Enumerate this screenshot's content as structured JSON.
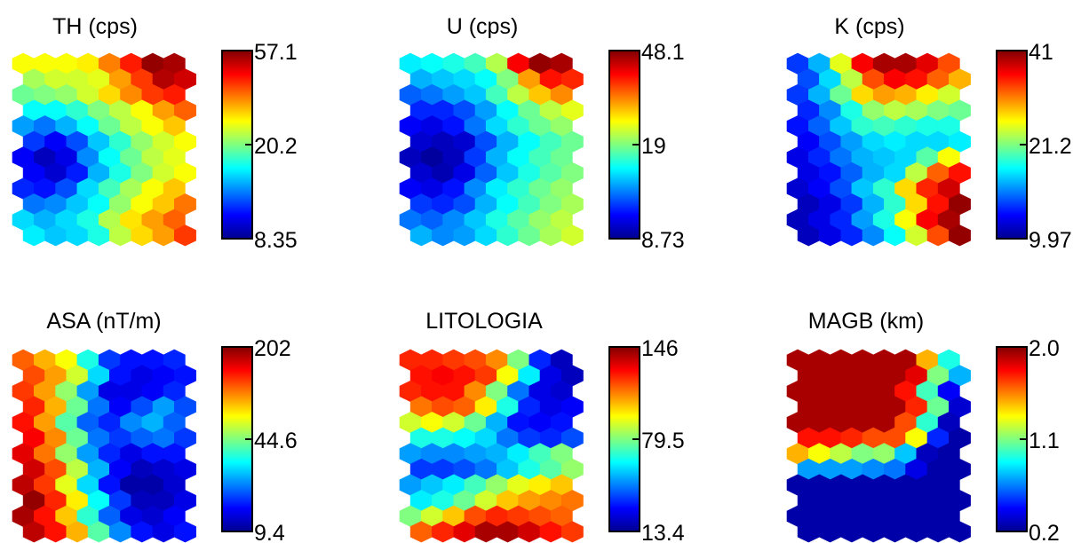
{
  "chart_data": [
    {
      "type": "heatmap",
      "title": "TH (cps)",
      "colorbar": {
        "min": 8.35,
        "mid": 20.2,
        "max": 57.1,
        "labels": [
          "57.1",
          "20.2",
          "8.35"
        ]
      },
      "grid": {
        "rows": 12,
        "cols": 8,
        "layout": "hexagonal"
      },
      "colormap": "jet",
      "values_normalized": [
        [
          0.62,
          0.62,
          0.62,
          0.64,
          0.75,
          0.85,
          0.98,
          0.96
        ],
        [
          0.54,
          0.58,
          0.58,
          0.6,
          0.72,
          0.82,
          0.95,
          0.92
        ],
        [
          0.48,
          0.5,
          0.52,
          0.58,
          0.66,
          0.74,
          0.82,
          0.85
        ],
        [
          0.38,
          0.38,
          0.42,
          0.5,
          0.56,
          0.62,
          0.72,
          0.78
        ],
        [
          0.28,
          0.24,
          0.3,
          0.38,
          0.48,
          0.56,
          0.62,
          0.68
        ],
        [
          0.18,
          0.12,
          0.2,
          0.32,
          0.42,
          0.52,
          0.58,
          0.62
        ],
        [
          0.12,
          0.06,
          0.1,
          0.26,
          0.38,
          0.48,
          0.56,
          0.6
        ],
        [
          0.12,
          0.08,
          0.15,
          0.3,
          0.4,
          0.5,
          0.58,
          0.62
        ],
        [
          0.16,
          0.14,
          0.2,
          0.34,
          0.44,
          0.54,
          0.62,
          0.68
        ],
        [
          0.24,
          0.26,
          0.32,
          0.38,
          0.52,
          0.62,
          0.68,
          0.76
        ],
        [
          0.34,
          0.3,
          0.34,
          0.4,
          0.55,
          0.65,
          0.72,
          0.78
        ],
        [
          0.36,
          0.32,
          0.34,
          0.4,
          0.56,
          0.66,
          0.72,
          0.82
        ]
      ]
    },
    {
      "type": "heatmap",
      "title": "U (cps)",
      "colorbar": {
        "min": 8.73,
        "mid": 19,
        "max": 48.1,
        "labels": [
          "48.1",
          "19",
          "8.73"
        ]
      },
      "grid": {
        "rows": 12,
        "cols": 8,
        "layout": "hexagonal"
      },
      "colormap": "jet",
      "values_normalized": [
        [
          0.36,
          0.38,
          0.4,
          0.44,
          0.55,
          0.88,
          0.98,
          0.96
        ],
        [
          0.3,
          0.32,
          0.34,
          0.38,
          0.5,
          0.72,
          0.86,
          0.84
        ],
        [
          0.22,
          0.24,
          0.28,
          0.32,
          0.44,
          0.56,
          0.68,
          0.74
        ],
        [
          0.16,
          0.16,
          0.2,
          0.28,
          0.38,
          0.48,
          0.56,
          0.6
        ],
        [
          0.12,
          0.1,
          0.14,
          0.24,
          0.34,
          0.42,
          0.48,
          0.52
        ],
        [
          0.08,
          0.06,
          0.08,
          0.2,
          0.3,
          0.38,
          0.44,
          0.48
        ],
        [
          0.06,
          0.03,
          0.06,
          0.18,
          0.3,
          0.38,
          0.44,
          0.48
        ],
        [
          0.08,
          0.05,
          0.1,
          0.22,
          0.32,
          0.4,
          0.46,
          0.5
        ],
        [
          0.12,
          0.1,
          0.14,
          0.26,
          0.36,
          0.42,
          0.48,
          0.52
        ],
        [
          0.18,
          0.16,
          0.2,
          0.3,
          0.38,
          0.44,
          0.5,
          0.54
        ],
        [
          0.24,
          0.22,
          0.26,
          0.32,
          0.4,
          0.46,
          0.52,
          0.56
        ],
        [
          0.3,
          0.26,
          0.28,
          0.34,
          0.42,
          0.48,
          0.54,
          0.58
        ]
      ]
    },
    {
      "type": "heatmap",
      "title": "K (cps)",
      "colorbar": {
        "min": 9.97,
        "mid": 21.2,
        "max": 41,
        "labels": [
          "41",
          "21.2",
          "9.97"
        ]
      },
      "grid": {
        "rows": 12,
        "cols": 8,
        "layout": "hexagonal"
      },
      "colormap": "jet",
      "values_normalized": [
        [
          0.18,
          0.3,
          0.6,
          0.88,
          0.96,
          0.96,
          0.9,
          0.8
        ],
        [
          0.2,
          0.34,
          0.56,
          0.8,
          0.88,
          0.86,
          0.78,
          0.7
        ],
        [
          0.18,
          0.3,
          0.48,
          0.66,
          0.72,
          0.7,
          0.64,
          0.58
        ],
        [
          0.16,
          0.26,
          0.4,
          0.52,
          0.56,
          0.54,
          0.5,
          0.48
        ],
        [
          0.14,
          0.22,
          0.32,
          0.42,
          0.44,
          0.42,
          0.4,
          0.4
        ],
        [
          0.12,
          0.2,
          0.28,
          0.34,
          0.36,
          0.34,
          0.34,
          0.36
        ],
        [
          0.1,
          0.16,
          0.24,
          0.3,
          0.32,
          0.34,
          0.46,
          0.62
        ],
        [
          0.1,
          0.14,
          0.22,
          0.3,
          0.34,
          0.56,
          0.78,
          0.86
        ],
        [
          0.08,
          0.12,
          0.2,
          0.32,
          0.42,
          0.66,
          0.84,
          0.92
        ],
        [
          0.06,
          0.1,
          0.18,
          0.3,
          0.42,
          0.66,
          0.86,
          0.98
        ],
        [
          0.06,
          0.1,
          0.16,
          0.28,
          0.4,
          0.62,
          0.88,
          0.96
        ],
        [
          0.06,
          0.1,
          0.16,
          0.26,
          0.38,
          0.58,
          0.8,
          0.98
        ]
      ]
    },
    {
      "type": "heatmap",
      "title": "ASA (nT/m)",
      "colorbar": {
        "min": 9.4,
        "mid": 44.6,
        "max": 202,
        "labels": [
          "202",
          "44.6",
          "9.4"
        ]
      },
      "grid": {
        "rows": 12,
        "cols": 8,
        "layout": "hexagonal"
      },
      "colormap": "jet",
      "values_normalized": [
        [
          0.78,
          0.7,
          0.62,
          0.4,
          0.18,
          0.14,
          0.14,
          0.16
        ],
        [
          0.8,
          0.72,
          0.58,
          0.34,
          0.14,
          0.1,
          0.12,
          0.14
        ],
        [
          0.82,
          0.72,
          0.52,
          0.28,
          0.1,
          0.1,
          0.12,
          0.16
        ],
        [
          0.84,
          0.7,
          0.48,
          0.24,
          0.12,
          0.2,
          0.28,
          0.2
        ],
        [
          0.86,
          0.72,
          0.46,
          0.22,
          0.16,
          0.26,
          0.3,
          0.22
        ],
        [
          0.88,
          0.74,
          0.48,
          0.24,
          0.18,
          0.22,
          0.24,
          0.18
        ],
        [
          0.9,
          0.76,
          0.52,
          0.28,
          0.16,
          0.1,
          0.14,
          0.14
        ],
        [
          0.92,
          0.8,
          0.56,
          0.3,
          0.12,
          0.06,
          0.08,
          0.1
        ],
        [
          0.94,
          0.82,
          0.6,
          0.34,
          0.14,
          0.04,
          0.04,
          0.08
        ],
        [
          0.98,
          0.84,
          0.64,
          0.38,
          0.18,
          0.06,
          0.06,
          0.1
        ],
        [
          0.96,
          0.86,
          0.68,
          0.42,
          0.22,
          0.1,
          0.08,
          0.12
        ],
        [
          0.94,
          0.86,
          0.7,
          0.46,
          0.26,
          0.14,
          0.1,
          0.14
        ]
      ]
    },
    {
      "type": "heatmap",
      "title": "LITOLOGIA",
      "colorbar": {
        "min": 13.4,
        "mid": 79.5,
        "max": 146,
        "labels": [
          "146",
          "79.5",
          "13.4"
        ]
      },
      "grid": {
        "rows": 12,
        "cols": 8,
        "layout": "hexagonal"
      },
      "colormap": "jet",
      "values_normalized": [
        [
          0.84,
          0.84,
          0.82,
          0.8,
          0.74,
          0.5,
          0.16,
          0.06
        ],
        [
          0.86,
          0.88,
          0.86,
          0.82,
          0.62,
          0.36,
          0.1,
          0.06
        ],
        [
          0.84,
          0.86,
          0.86,
          0.74,
          0.5,
          0.24,
          0.1,
          0.08
        ],
        [
          0.76,
          0.8,
          0.78,
          0.64,
          0.4,
          0.16,
          0.1,
          0.12
        ],
        [
          0.58,
          0.62,
          0.58,
          0.48,
          0.3,
          0.14,
          0.12,
          0.14
        ],
        [
          0.4,
          0.4,
          0.38,
          0.34,
          0.24,
          0.18,
          0.16,
          0.2
        ],
        [
          0.28,
          0.26,
          0.26,
          0.28,
          0.3,
          0.36,
          0.44,
          0.5
        ],
        [
          0.18,
          0.18,
          0.2,
          0.24,
          0.32,
          0.4,
          0.46,
          0.52
        ],
        [
          0.28,
          0.32,
          0.36,
          0.44,
          0.52,
          0.6,
          0.64,
          0.68
        ],
        [
          0.36,
          0.4,
          0.48,
          0.58,
          0.68,
          0.72,
          0.74,
          0.76
        ],
        [
          0.5,
          0.58,
          0.68,
          0.8,
          0.84,
          0.82,
          0.8,
          0.78
        ],
        [
          0.78,
          0.84,
          0.9,
          0.96,
          0.96,
          0.92,
          0.86,
          0.82
        ]
      ]
    },
    {
      "type": "heatmap",
      "title": "MAGB (km)",
      "colorbar": {
        "min": 0.2,
        "mid": 1.1,
        "max": 2.0,
        "labels": [
          "2.0",
          "1.1",
          "0.2"
        ]
      },
      "grid": {
        "rows": 12,
        "cols": 8,
        "layout": "hexagonal"
      },
      "colormap": "jet",
      "values_normalized": [
        [
          0.96,
          0.96,
          0.96,
          0.96,
          0.96,
          0.96,
          0.7,
          0.4
        ],
        [
          0.96,
          0.96,
          0.96,
          0.96,
          0.96,
          0.9,
          0.5,
          0.3
        ],
        [
          0.96,
          0.96,
          0.96,
          0.96,
          0.96,
          0.86,
          0.44,
          0.12
        ],
        [
          0.96,
          0.96,
          0.96,
          0.96,
          0.96,
          0.84,
          0.48,
          0.08
        ],
        [
          0.96,
          0.96,
          0.96,
          0.96,
          0.96,
          0.8,
          0.42,
          0.06
        ],
        [
          0.86,
          0.86,
          0.84,
          0.8,
          0.8,
          0.62,
          0.16,
          0.04
        ],
        [
          0.7,
          0.62,
          0.56,
          0.5,
          0.52,
          0.32,
          0.06,
          0.04
        ],
        [
          0.28,
          0.28,
          0.28,
          0.26,
          0.24,
          0.1,
          0.04,
          0.04
        ],
        [
          0.04,
          0.04,
          0.04,
          0.04,
          0.04,
          0.04,
          0.04,
          0.04
        ],
        [
          0.04,
          0.04,
          0.04,
          0.04,
          0.04,
          0.04,
          0.04,
          0.04
        ],
        [
          0.04,
          0.04,
          0.04,
          0.04,
          0.04,
          0.04,
          0.04,
          0.04
        ],
        [
          0.04,
          0.04,
          0.04,
          0.04,
          0.04,
          0.04,
          0.04,
          0.04
        ]
      ]
    }
  ]
}
